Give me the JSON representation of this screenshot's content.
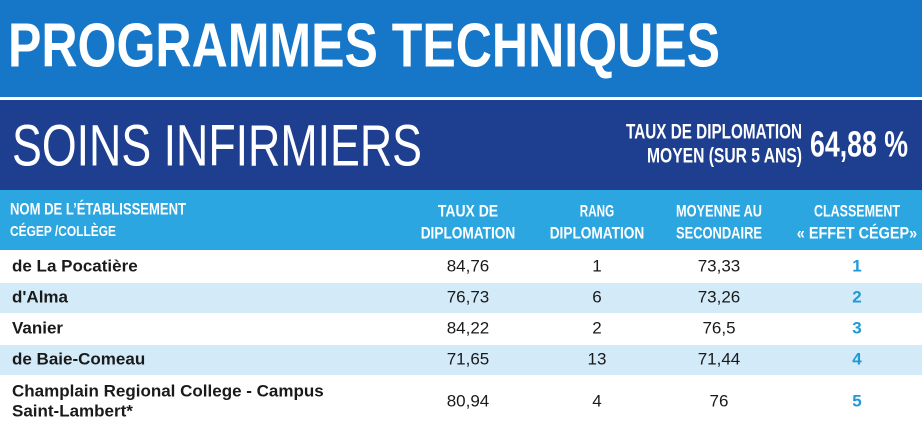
{
  "header": {
    "title": "PROGRAMMES TECHNIQUES"
  },
  "program": {
    "name": "SOINS INFIRMIERS",
    "average_label": [
      "TAUX DE DIPLOMATION",
      "MOYEN (SUR 5 ANS)"
    ],
    "average_value": "64,88 %"
  },
  "table": {
    "columns": [
      [
        "NOM DE L’ÉTABLISSEMENT",
        "CÉGEP /COLLÈGE"
      ],
      [
        "TAUX DE",
        "DIPLOMATION"
      ],
      [
        "RANG",
        "DIPLOMATION"
      ],
      [
        "MOYENNE AU",
        "SECONDAIRE"
      ],
      [
        "CLASSEMENT",
        "« EFFET CÉGEP»"
      ]
    ],
    "rows": [
      [
        [
          "de La Pocatière"
        ],
        "84,76",
        "1",
        "73,33",
        "1"
      ],
      [
        [
          "d'Alma"
        ],
        "76,73",
        "6",
        "73,26",
        "2"
      ],
      [
        [
          "Vanier"
        ],
        "84,22",
        "2",
        "76,5",
        "3"
      ],
      [
        [
          "de Baie-Comeau"
        ],
        "71,65",
        "13",
        "71,44",
        "4"
      ],
      [
        [
          "Champlain Regional College - Campus",
          "Saint-Lambert*"
        ],
        "80,94",
        "4",
        "76",
        "5"
      ]
    ]
  }
}
